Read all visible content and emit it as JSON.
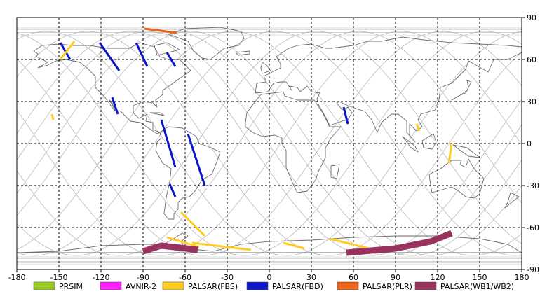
{
  "map": {
    "lon_ticks": [
      "-180",
      "-150",
      "-120",
      "-90",
      "-60",
      "-30",
      "0",
      "30",
      "60",
      "90",
      "120",
      "150",
      "180"
    ],
    "lat_ticks": [
      "90",
      "60",
      "30",
      "0",
      "-30",
      "-60",
      "-90"
    ],
    "lon_range": [
      -180,
      180
    ],
    "lat_range": [
      -90,
      90
    ],
    "grid": "dashed",
    "orbit_track_color": "#b8b8b8",
    "coastline_color": "#6e6e6e"
  },
  "legend": {
    "placement": "bottom",
    "items": [
      {
        "label": "PRSIM",
        "color": "#99cc22",
        "icon": "legend-swatch"
      },
      {
        "label": "AVNIR-2",
        "color": "#ff22ff",
        "icon": "legend-swatch"
      },
      {
        "label": "PALSAR(FBS)",
        "color": "#ffcc22",
        "icon": "legend-swatch"
      },
      {
        "label": "PALSAR(FBD)",
        "color": "#0a16c8",
        "icon": "legend-swatch"
      },
      {
        "label": "PALSAR(PLR)",
        "color": "#f06418",
        "icon": "legend-swatch"
      },
      {
        "label": "PALSAR(WB1/WB2)",
        "color": "#99335e",
        "icon": "legend-swatch"
      }
    ]
  },
  "chart_data": {
    "type": "map",
    "xlabel": "",
    "ylabel": "",
    "xlim": [
      -180,
      180
    ],
    "ylim": [
      -90,
      90
    ],
    "series": [
      {
        "name": "PALSAR(FBD)",
        "color": "#0a16c8",
        "swaths": [
          [
            [
              -149,
              72
            ],
            [
              -142,
              60
            ]
          ],
          [
            [
              -121,
              72
            ],
            [
              -107,
              52
            ]
          ],
          [
            [
              -112,
              33
            ],
            [
              -108,
              21
            ]
          ],
          [
            [
              -95,
              72
            ],
            [
              -87,
              55
            ]
          ],
          [
            [
              -73,
              65
            ],
            [
              -67,
              55
            ]
          ],
          [
            [
              -77,
              17
            ],
            [
              -67,
              -17
            ]
          ],
          [
            [
              -58,
              7
            ],
            [
              -46,
              -30
            ]
          ],
          [
            [
              -71,
              -29
            ],
            [
              -67,
              -38
            ]
          ],
          [
            [
              53,
              26
            ],
            [
              56,
              14
            ]
          ]
        ]
      },
      {
        "name": "PALSAR(FBS)",
        "color": "#ffcc22",
        "swaths": [
          [
            [
              -139,
              73
            ],
            [
              -149,
              60
            ]
          ],
          [
            [
              -155,
              21
            ],
            [
              -154,
              17
            ]
          ],
          [
            [
              -63,
              -49
            ],
            [
              -46,
              -66
            ]
          ],
          [
            [
              -73,
              -67
            ],
            [
              -50,
              -74
            ]
          ],
          [
            [
              -55,
              -71
            ],
            [
              -13,
              -76
            ]
          ],
          [
            [
              10,
              -71
            ],
            [
              25,
              -75
            ]
          ],
          [
            [
              43,
              -68
            ],
            [
              75,
              -76
            ]
          ],
          [
            [
              105,
              14
            ],
            [
              107,
              9
            ]
          ],
          [
            [
              130,
              0
            ],
            [
              128,
              -14
            ]
          ]
        ]
      },
      {
        "name": "PALSAR(PLR)",
        "color": "#f06418",
        "swaths": [
          [
            [
              -89,
              82
            ],
            [
              -66,
              79
            ]
          ]
        ]
      },
      {
        "name": "PALSAR(WB1/WB2)",
        "color": "#99335e",
        "swaths": [
          [
            [
              -90,
              -77
            ],
            [
              -77,
              -73
            ],
            [
              -68,
              -74
            ],
            [
              -51,
              -76
            ]
          ],
          [
            [
              55,
              -78
            ],
            [
              90,
              -75
            ],
            [
              115,
              -70
            ],
            [
              130,
              -64
            ]
          ]
        ]
      }
    ]
  }
}
